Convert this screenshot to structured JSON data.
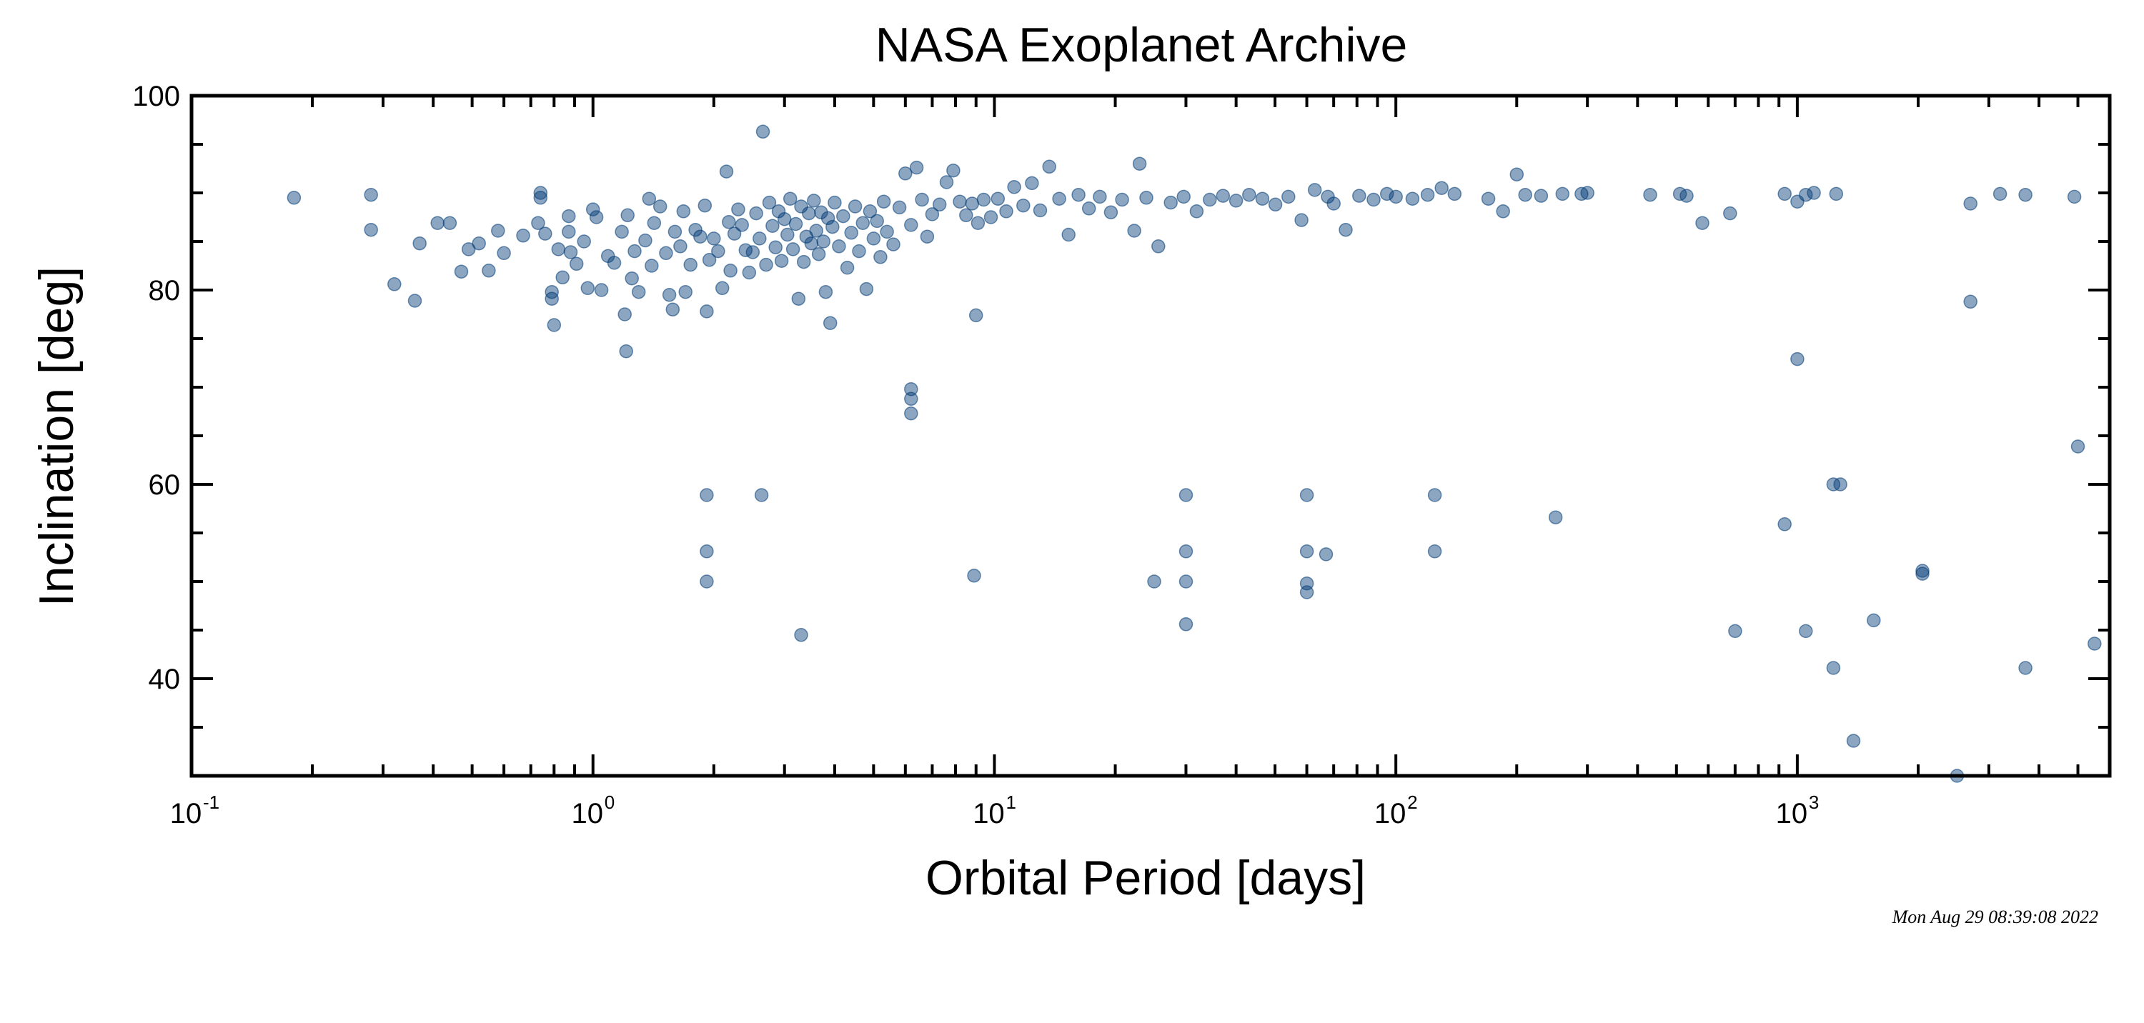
{
  "chart_data": {
    "type": "scatter",
    "title": "NASA Exoplanet Archive",
    "xlabel": "Orbital Period [days]",
    "ylabel": "Inclination [deg]",
    "xscale": "log",
    "xlim": [
      0.1,
      6000
    ],
    "ylim": [
      30,
      100
    ],
    "grid": false,
    "x_ticks": [
      {
        "base": "10",
        "exp": "-1",
        "value": 0.1
      },
      {
        "base": "10",
        "exp": "0",
        "value": 1
      },
      {
        "base": "10",
        "exp": "1",
        "value": 10
      },
      {
        "base": "10",
        "exp": "2",
        "value": 100
      },
      {
        "base": "10",
        "exp": "3",
        "value": 1000
      }
    ],
    "y_ticks": [
      {
        "label": "40",
        "value": 40
      },
      {
        "label": "60",
        "value": 60
      },
      {
        "label": "80",
        "value": 80
      },
      {
        "label": "100",
        "value": 100
      }
    ],
    "marker_color": "#003a75",
    "marker_opacity": 0.45,
    "points": [
      [
        0.18,
        89.5
      ],
      [
        0.28,
        89.8
      ],
      [
        0.28,
        86.2
      ],
      [
        0.32,
        80.6
      ],
      [
        0.36,
        78.9
      ],
      [
        0.37,
        84.8
      ],
      [
        0.41,
        86.9
      ],
      [
        0.44,
        86.9
      ],
      [
        0.47,
        81.9
      ],
      [
        0.49,
        84.2
      ],
      [
        0.52,
        84.8
      ],
      [
        0.55,
        82.0
      ],
      [
        0.58,
        86.1
      ],
      [
        0.6,
        83.8
      ],
      [
        0.67,
        85.6
      ],
      [
        0.73,
        86.9
      ],
      [
        0.74,
        90.0
      ],
      [
        0.74,
        89.5
      ],
      [
        0.76,
        85.8
      ],
      [
        0.79,
        79.8
      ],
      [
        0.79,
        79.1
      ],
      [
        0.8,
        76.4
      ],
      [
        0.82,
        84.2
      ],
      [
        0.84,
        81.3
      ],
      [
        0.87,
        87.6
      ],
      [
        0.87,
        86.0
      ],
      [
        0.88,
        83.9
      ],
      [
        0.91,
        82.7
      ],
      [
        0.95,
        85.0
      ],
      [
        0.97,
        80.2
      ],
      [
        1.0,
        88.3
      ],
      [
        1.02,
        87.5
      ],
      [
        1.05,
        80.0
      ],
      [
        1.09,
        83.5
      ],
      [
        1.13,
        82.8
      ],
      [
        1.18,
        86.0
      ],
      [
        1.2,
        77.5
      ],
      [
        1.21,
        73.7
      ],
      [
        1.22,
        87.7
      ],
      [
        1.25,
        81.2
      ],
      [
        1.27,
        84.0
      ],
      [
        1.3,
        79.8
      ],
      [
        1.35,
        85.1
      ],
      [
        1.38,
        89.4
      ],
      [
        1.4,
        82.5
      ],
      [
        1.42,
        86.9
      ],
      [
        1.47,
        88.6
      ],
      [
        1.52,
        83.8
      ],
      [
        1.55,
        79.5
      ],
      [
        1.58,
        78.0
      ],
      [
        1.6,
        86.0
      ],
      [
        1.65,
        84.5
      ],
      [
        1.68,
        88.1
      ],
      [
        1.7,
        79.8
      ],
      [
        1.75,
        82.6
      ],
      [
        1.8,
        86.2
      ],
      [
        1.85,
        85.5
      ],
      [
        1.9,
        88.7
      ],
      [
        1.92,
        77.8
      ],
      [
        1.95,
        83.1
      ],
      [
        2.0,
        85.3
      ],
      [
        2.05,
        84.0
      ],
      [
        2.1,
        80.2
      ],
      [
        2.15,
        92.2
      ],
      [
        2.18,
        87.0
      ],
      [
        2.2,
        82.0
      ],
      [
        2.25,
        85.8
      ],
      [
        2.3,
        88.3
      ],
      [
        2.35,
        86.7
      ],
      [
        2.4,
        84.1
      ],
      [
        2.45,
        81.8
      ],
      [
        2.5,
        83.9
      ],
      [
        2.55,
        87.9
      ],
      [
        2.6,
        85.3
      ],
      [
        2.65,
        96.3
      ],
      [
        2.7,
        82.6
      ],
      [
        2.75,
        89.0
      ],
      [
        2.8,
        86.6
      ],
      [
        2.85,
        84.4
      ],
      [
        2.9,
        88.1
      ],
      [
        2.95,
        83.0
      ],
      [
        3.0,
        87.3
      ],
      [
        3.05,
        85.7
      ],
      [
        3.1,
        89.4
      ],
      [
        3.15,
        84.2
      ],
      [
        3.2,
        86.8
      ],
      [
        3.25,
        79.1
      ],
      [
        3.3,
        88.6
      ],
      [
        3.35,
        82.9
      ],
      [
        3.4,
        85.5
      ],
      [
        3.45,
        87.9
      ],
      [
        3.5,
        84.8
      ],
      [
        3.55,
        89.2
      ],
      [
        3.6,
        86.1
      ],
      [
        3.65,
        83.7
      ],
      [
        3.7,
        88.0
      ],
      [
        3.75,
        85.0
      ],
      [
        3.8,
        79.8
      ],
      [
        3.85,
        87.4
      ],
      [
        3.9,
        76.6
      ],
      [
        3.95,
        86.5
      ],
      [
        4.0,
        89.0
      ],
      [
        4.1,
        84.5
      ],
      [
        4.2,
        87.6
      ],
      [
        4.3,
        82.3
      ],
      [
        4.4,
        85.9
      ],
      [
        4.5,
        88.6
      ],
      [
        4.6,
        84.0
      ],
      [
        4.7,
        86.9
      ],
      [
        4.8,
        80.1
      ],
      [
        4.9,
        88.1
      ],
      [
        5.0,
        85.3
      ],
      [
        5.1,
        87.1
      ],
      [
        5.2,
        83.4
      ],
      [
        5.3,
        89.1
      ],
      [
        5.4,
        86.0
      ],
      [
        5.6,
        84.7
      ],
      [
        5.8,
        88.5
      ],
      [
        6.0,
        92.0
      ],
      [
        6.2,
        86.7
      ],
      [
        6.4,
        92.6
      ],
      [
        6.6,
        89.3
      ],
      [
        6.8,
        85.5
      ],
      [
        7.0,
        87.8
      ],
      [
        7.3,
        88.8
      ],
      [
        7.6,
        91.1
      ],
      [
        7.9,
        92.3
      ],
      [
        8.2,
        89.1
      ],
      [
        8.5,
        87.7
      ],
      [
        8.8,
        88.9
      ],
      [
        9.1,
        86.9
      ],
      [
        9.4,
        89.3
      ],
      [
        9.8,
        87.5
      ],
      [
        10.2,
        89.4
      ],
      [
        10.7,
        88.1
      ],
      [
        11.2,
        90.6
      ],
      [
        11.8,
        88.7
      ],
      [
        12.4,
        91.0
      ],
      [
        13.0,
        88.2
      ],
      [
        13.7,
        92.7
      ],
      [
        14.5,
        89.4
      ],
      [
        15.3,
        85.7
      ],
      [
        16.2,
        89.8
      ],
      [
        17.2,
        88.4
      ],
      [
        18.3,
        89.6
      ],
      [
        19.5,
        88.0
      ],
      [
        20.8,
        89.3
      ],
      [
        22.3,
        86.1
      ],
      [
        23.0,
        93.0
      ],
      [
        23.9,
        89.5
      ],
      [
        25.6,
        84.5
      ],
      [
        27.5,
        89.0
      ],
      [
        29.6,
        89.6
      ],
      [
        31.9,
        88.1
      ],
      [
        34.4,
        89.3
      ],
      [
        37.1,
        89.7
      ],
      [
        40.0,
        89.2
      ],
      [
        43.1,
        89.8
      ],
      [
        46.5,
        89.4
      ],
      [
        50.1,
        88.8
      ],
      [
        54.0,
        89.6
      ],
      [
        58.2,
        87.2
      ],
      [
        62.8,
        90.3
      ],
      [
        67.7,
        89.6
      ],
      [
        70.0,
        88.9
      ],
      [
        75.0,
        86.2
      ],
      [
        81.0,
        89.7
      ],
      [
        88.0,
        89.3
      ],
      [
        95.0,
        89.9
      ],
      [
        100.0,
        89.6
      ],
      [
        110.0,
        89.4
      ],
      [
        120.0,
        89.8
      ],
      [
        130.0,
        90.5
      ],
      [
        140.0,
        89.9
      ],
      [
        170.0,
        89.4
      ],
      [
        185.0,
        88.1
      ],
      [
        200.0,
        91.9
      ],
      [
        210.0,
        89.8
      ],
      [
        230.0,
        89.7
      ],
      [
        260.0,
        89.9
      ],
      [
        290.0,
        89.9
      ],
      [
        300.0,
        90.0
      ],
      [
        430.0,
        89.8
      ],
      [
        510.0,
        89.9
      ],
      [
        530.0,
        89.7
      ],
      [
        580.0,
        86.9
      ],
      [
        680.0,
        87.9
      ],
      [
        930.0,
        89.9
      ],
      [
        1000.0,
        89.1
      ],
      [
        1050.0,
        89.8
      ],
      [
        1100.0,
        90.0
      ],
      [
        1250.0,
        89.9
      ],
      [
        2700.0,
        88.9
      ],
      [
        3200.0,
        89.9
      ],
      [
        3700.0,
        89.8
      ],
      [
        4900.0,
        89.6
      ],
      [
        2700.0,
        78.8
      ],
      [
        5000.0,
        63.9
      ],
      [
        6.2,
        69.8
      ],
      [
        6.2,
        68.8
      ],
      [
        6.2,
        67.3
      ],
      [
        9.0,
        77.4
      ],
      [
        1000.0,
        72.9
      ],
      [
        1.92,
        58.9
      ],
      [
        1.92,
        53.1
      ],
      [
        1.92,
        50.0
      ],
      [
        2.63,
        58.9
      ],
      [
        3.3,
        44.5
      ],
      [
        8.9,
        50.6
      ],
      [
        25.0,
        50.0
      ],
      [
        30.0,
        58.9
      ],
      [
        30.0,
        53.1
      ],
      [
        30.0,
        50.0
      ],
      [
        30.0,
        45.6
      ],
      [
        60.0,
        58.9
      ],
      [
        60.0,
        53.1
      ],
      [
        60.0,
        49.8
      ],
      [
        60.0,
        48.9
      ],
      [
        67.0,
        52.8
      ],
      [
        125.0,
        58.9
      ],
      [
        125.0,
        53.1
      ],
      [
        250.0,
        56.6
      ],
      [
        700.0,
        44.9
      ],
      [
        930.0,
        55.9
      ],
      [
        1050.0,
        44.9
      ],
      [
        1230.0,
        60.0
      ],
      [
        1280.0,
        60.0
      ],
      [
        1230.0,
        41.1
      ],
      [
        1380.0,
        33.6
      ],
      [
        1550.0,
        46.0
      ],
      [
        2050.0,
        51.1
      ],
      [
        2050.0,
        50.8
      ],
      [
        2500.0,
        30.0
      ],
      [
        3700.0,
        41.1
      ],
      [
        5500.0,
        43.6
      ]
    ]
  },
  "timestamp": "Mon Aug 29 08:39:08 2022"
}
